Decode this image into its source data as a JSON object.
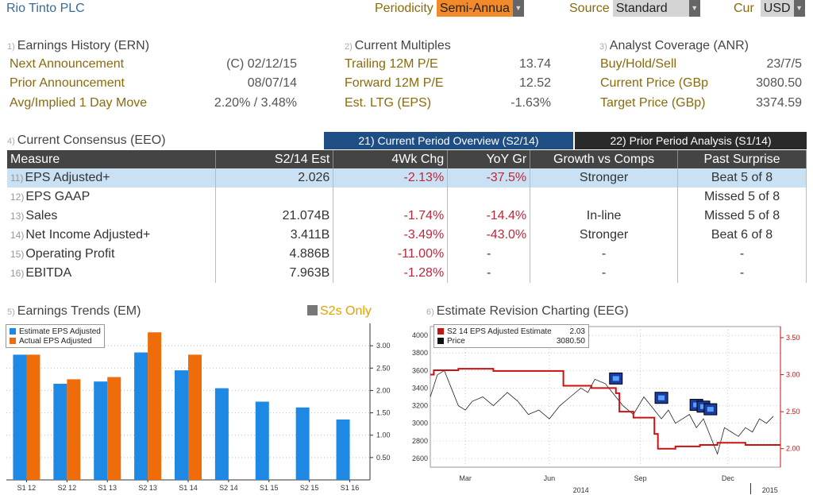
{
  "header": {
    "company": "Rio Tinto PLC",
    "periodicity_label": "Periodicity",
    "periodicity_value": "Semi-Annua",
    "source_label": "Source",
    "source_value": "Standard",
    "cur_label": "Cur",
    "cur_value": "USD"
  },
  "earnings_history": {
    "index": "1)",
    "title": "Earnings History (ERN)",
    "rows": [
      {
        "label": "Next Announcement",
        "value": "(C)  02/12/15"
      },
      {
        "label": "Prior Announcement",
        "value": "08/07/14"
      },
      {
        "label": "Avg/Implied 1 Day Move",
        "value": "2.20% / 3.48%"
      }
    ]
  },
  "current_multiples": {
    "index": "2)",
    "title": "Current Multiples",
    "rows": [
      {
        "label": "Trailing 12M P/E",
        "value": "13.74"
      },
      {
        "label": "Forward 12M P/E",
        "value": "12.52"
      },
      {
        "label": "Est. LTG (EPS)",
        "value": "-1.63%"
      }
    ]
  },
  "analyst_coverage": {
    "index": "3)",
    "title": "Analyst Coverage (ANR)",
    "rows": [
      {
        "label": "Buy/Hold/Sell",
        "value": "23/7/5"
      },
      {
        "label": "Current Price (GBp",
        "value": "3080.50"
      },
      {
        "label": "Target Price (GBp)",
        "value": "3374.59"
      }
    ]
  },
  "consensus": {
    "index": "4)",
    "title": "Current Consensus (EEO)",
    "tab_current": "21) Current Period Overview (S2/14)",
    "tab_prior": "22) Prior Period Analysis (S1/14)",
    "columns": [
      "Measure",
      "S2/14 Est",
      "4Wk Chg",
      "YoY Gr",
      "Growth vs Comps",
      "Past Surprise"
    ],
    "rows": [
      {
        "idx": "11)",
        "measure": "EPS Adjusted+",
        "est": "2.026",
        "chg": "-2.13%",
        "yoy": "-37.5%",
        "growth": "Stronger",
        "surprise": "Beat 5 of 8"
      },
      {
        "idx": "12)",
        "measure": "EPS GAAP",
        "est": "",
        "chg": "",
        "yoy": "",
        "growth": "",
        "surprise": "Missed 5 of 8"
      },
      {
        "idx": "13)",
        "measure": "Sales",
        "est": "21.074B",
        "chg": "-1.74%",
        "yoy": "-14.4%",
        "growth": "In-line",
        "surprise": "Missed 5 of 8"
      },
      {
        "idx": "14)",
        "measure": "Net Income Adjusted+",
        "est": "3.411B",
        "chg": "-3.49%",
        "yoy": "-43.0%",
        "growth": "Stronger",
        "surprise": "Beat 6 of 8"
      },
      {
        "idx": "15)",
        "measure": "Operating Profit",
        "est": "4.886B",
        "chg": "-11.00%",
        "yoy": "-",
        "growth": "-",
        "surprise": "-"
      },
      {
        "idx": "16)",
        "measure": "EBITDA",
        "est": "7.963B",
        "chg": "-1.28%",
        "yoy": "-",
        "growth": "-",
        "surprise": "-"
      }
    ]
  },
  "earnings_trends": {
    "index": "5)",
    "title": "Earnings Trends (EM)",
    "toggle": "S2s Only"
  },
  "estimate_revision": {
    "index": "6)",
    "title": "Estimate Revision Charting (EEG)"
  },
  "colors": {
    "blue": "#1e88e5",
    "orange": "#ef6c0a",
    "red": "#cc1111",
    "header_dark": "#444444",
    "tab_active": "#1e4e84",
    "highlight_row": "#c9e1f3"
  },
  "chart_data": [
    {
      "type": "bar",
      "categories": [
        "S1 12",
        "S2 12",
        "S1 13",
        "S2 13",
        "S1 14",
        "S2 14",
        "S1 15",
        "S2 15",
        "S1 16"
      ],
      "series": [
        {
          "name": "Estimate EPS Adjusted",
          "values": [
            2.8,
            2.15,
            2.2,
            2.85,
            2.45,
            2.05,
            1.75,
            1.62,
            1.35
          ]
        },
        {
          "name": "Actual EPS Adjusted",
          "values": [
            2.8,
            2.25,
            2.3,
            3.3,
            2.8,
            null,
            null,
            null,
            null
          ]
        }
      ],
      "yticks": [
        "0.50",
        "1.00",
        "1.50",
        "2.00",
        "2.50",
        "3.00"
      ],
      "ylim": [
        0,
        3.5
      ],
      "legend": "top-left"
    },
    {
      "type": "line",
      "x_ticks": [
        "Mar",
        "Jun",
        "Sep",
        "Dec"
      ],
      "x_year_labels": [
        "2014",
        "2015"
      ],
      "left_yticks": [
        "2600",
        "2800",
        "3000",
        "3200",
        "3400",
        "3600",
        "3800",
        "4000"
      ],
      "right_yticks": [
        "2.00",
        "2.50",
        "3.00",
        "3.50"
      ],
      "left_ylim": [
        2500,
        4100
      ],
      "right_ylim": [
        1.75,
        3.65
      ],
      "series": [
        {
          "name": "S2 14 EPS Adjusted Estimate",
          "legend_value": "2.03",
          "axis": "right",
          "points": [
            [
              0,
              3.0
            ],
            [
              1,
              3.06
            ],
            [
              8,
              3.08
            ],
            [
              18,
              3.05
            ],
            [
              37,
              3.05
            ],
            [
              38,
              2.85
            ],
            [
              46,
              2.82
            ],
            [
              53,
              2.75
            ],
            [
              54,
              2.5
            ],
            [
              58,
              2.42
            ],
            [
              64,
              2.2
            ],
            [
              65,
              2.0
            ],
            [
              70,
              2.03
            ],
            [
              77,
              2.05
            ],
            [
              82,
              2.08
            ],
            [
              90,
              2.05
            ],
            [
              100,
              2.05
            ]
          ]
        },
        {
          "name": "Price",
          "legend_value": "3080.50",
          "axis": "left",
          "points": [
            [
              0,
              3300
            ],
            [
              2,
              3550
            ],
            [
              4,
              3600
            ],
            [
              6,
              3400
            ],
            [
              8,
              3200
            ],
            [
              10,
              3150
            ],
            [
              12,
              3250
            ],
            [
              15,
              3300
            ],
            [
              18,
              3200
            ],
            [
              22,
              3350
            ],
            [
              25,
              3250
            ],
            [
              28,
              3100
            ],
            [
              31,
              3150
            ],
            [
              34,
              3050
            ],
            [
              37,
              3200
            ],
            [
              40,
              3300
            ],
            [
              43,
              3400
            ],
            [
              45,
              3350
            ],
            [
              47,
              3500
            ],
            [
              50,
              3450
            ],
            [
              52,
              3350
            ],
            [
              55,
              3200
            ],
            [
              58,
              3100
            ],
            [
              61,
              3300
            ],
            [
              64,
              3150
            ],
            [
              66,
              3050
            ],
            [
              68,
              3150
            ],
            [
              70,
              3000
            ],
            [
              72,
              3050
            ],
            [
              74,
              3100
            ],
            [
              76,
              2950
            ],
            [
              78,
              3050
            ],
            [
              80,
              2850
            ],
            [
              82,
              2650
            ],
            [
              84,
              2950
            ],
            [
              86,
              2900
            ],
            [
              88,
              2850
            ],
            [
              90,
              2950
            ],
            [
              92,
              2900
            ],
            [
              94,
              3050
            ],
            [
              96,
              3000
            ],
            [
              98,
              3080
            ]
          ]
        }
      ],
      "revision_markers": 5,
      "legend": "top-left"
    }
  ]
}
